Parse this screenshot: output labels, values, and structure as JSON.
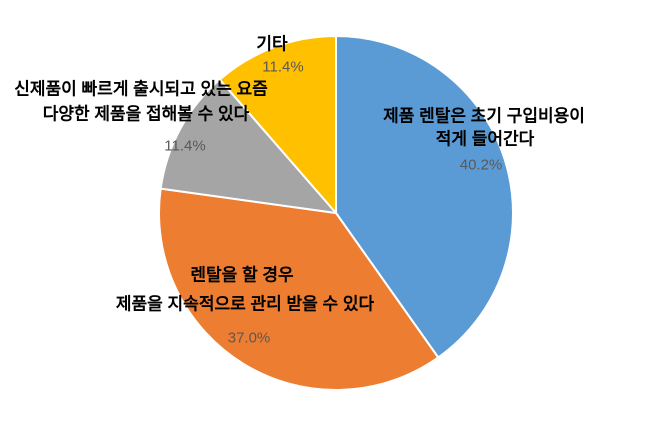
{
  "chart_data": {
    "type": "pie",
    "title": "",
    "legend": false,
    "start_angle_deg": 0,
    "direction": "clockwise",
    "total": 100,
    "data_label_format": "category name + percentage",
    "slices": [
      {
        "label": "제품 렌탈은 초기 구입비용이 적게 들어간다",
        "label_lines": [
          "제품 렌탈은 초기 구입비용이",
          "적게 들어간다"
        ],
        "value": 40.2,
        "pct_label": "40.2%",
        "color": "#5B9BD5"
      },
      {
        "label": "렌탈을 할 경우 제품을 지속적으로 관리 받을 수 있다",
        "label_lines": [
          "렌탈을 할 경우",
          "제품을 지속적으로 관리 받을 수 있다"
        ],
        "value": 37.0,
        "pct_label": "37.0%",
        "color": "#ED7D31"
      },
      {
        "label": "신제품이 빠르게 출시되고 있는 요즘 다양한 제품을 접해볼 수 있다",
        "label_lines": [
          "신제품이 빠르게 출시되고 있는 요즘",
          "다양한 제품을 접해볼 수 있다"
        ],
        "value": 11.4,
        "pct_label": "11.4%",
        "color": "#A5A5A5"
      },
      {
        "label": "기타",
        "label_lines": [
          "기타"
        ],
        "value": 11.4,
        "pct_label": "11.4%",
        "color": "#FFC000"
      }
    ],
    "style": {
      "category_label_color": "#000000",
      "pct_label_color": "#595959",
      "separator_color": "#FFFFFF",
      "background": "#FFFFFF"
    }
  }
}
